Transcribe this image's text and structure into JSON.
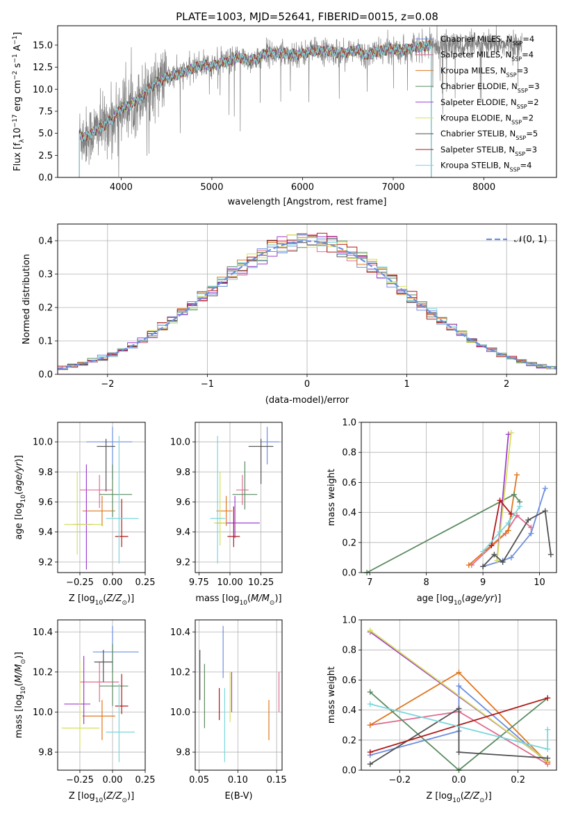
{
  "figure_title": "PLATE=1003, MJD=52641, FIBERID=0015, z=0.08",
  "models": [
    {
      "name": "Chabrier MILES",
      "nssp": "4",
      "color": "#6b8ee0"
    },
    {
      "name": "Salpeter MILES",
      "nssp": "4",
      "color": "#e06c8f"
    },
    {
      "name": "Kroupa MILES",
      "nssp": "3",
      "color": "#e0761f"
    },
    {
      "name": "Chabrier ELODIE",
      "nssp": "3",
      "color": "#5a8a5f"
    },
    {
      "name": "Salpeter ELODIE",
      "nssp": "2",
      "color": "#a03dd0"
    },
    {
      "name": "Kroupa ELODIE",
      "nssp": "2",
      "color": "#d6e05a"
    },
    {
      "name": "Chabrier STELIB",
      "nssp": "5",
      "color": "#505050"
    },
    {
      "name": "Salpeter STELIB",
      "nssp": "3",
      "color": "#b01818"
    },
    {
      "name": "Kroupa STELIB",
      "nssp": "4",
      "color": "#7ad6dc"
    }
  ],
  "nssp_prefix": "N",
  "nssp_sub": "SSP",
  "chart_data": [
    {
      "id": "spectrum",
      "type": "line",
      "xlabel": "wavelength [Angstrom, rest frame]",
      "ylabel": "Flux [f_λ10^-17 erg cm^-2 s^-1 A^-1]",
      "xlim": [
        3300,
        8800
      ],
      "ylim": [
        0,
        17.2
      ],
      "xticks": [
        4000,
        5000,
        6000,
        7000,
        8000
      ],
      "yticks": [
        0.0,
        2.5,
        5.0,
        7.5,
        10.0,
        12.5,
        15.0
      ],
      "data_color": "#808080",
      "model_color": "#7ad6dc",
      "model_x": [
        3540,
        3600,
        3700,
        3800,
        3900,
        4000,
        4100,
        4200,
        4300,
        4400,
        4500,
        4600,
        4700,
        4800,
        4900,
        5000,
        5100,
        5200,
        5300,
        5400,
        5500,
        5600,
        5700,
        5800,
        5900,
        6000,
        6100,
        6200,
        6300,
        6400,
        6500,
        6600,
        6700,
        6800,
        6900,
        7000,
        7100,
        7200,
        7300,
        7420
      ],
      "model_y": [
        4.9,
        4.5,
        5.2,
        5.8,
        6.6,
        7.8,
        8.2,
        8.9,
        10.0,
        10.8,
        11.3,
        11.6,
        12.0,
        12.4,
        12.8,
        12.6,
        13.0,
        13.2,
        13.6,
        13.3,
        13.4,
        14.2,
        14.0,
        14.1,
        14.0,
        14.0,
        14.3,
        14.4,
        14.3,
        14.1,
        14.2,
        14.4,
        13.8,
        14.2,
        14.4,
        14.6,
        14.4,
        14.7,
        14.8,
        15.0
      ],
      "data_range": [
        3540,
        8420
      ]
    },
    {
      "id": "residuals",
      "type": "step",
      "xlabel": "(data-model)/error",
      "ylabel": "Normed distribution",
      "xlim": [
        -2.5,
        2.5
      ],
      "ylim": [
        0,
        0.45
      ],
      "xticks": [
        -2,
        -1,
        0,
        1,
        2
      ],
      "yticks": [
        0.0,
        0.1,
        0.2,
        0.3,
        0.4
      ],
      "bin_width": 0.1,
      "gaussian_label": "𝒩(0, 1)",
      "gaussian_color": "#6b8ee0"
    },
    {
      "id": "age_vs_Z",
      "type": "errorbar",
      "xlabel": "Z [log10(Z/Z⊙)]",
      "ylabel": "age [log10(age/yr)]",
      "xlim": [
        -0.42,
        0.25
      ],
      "ylim": [
        9.13,
        10.13
      ],
      "xticks": [
        -0.25,
        0.0,
        0.25
      ],
      "xtick_labels": [
        "−0.25",
        "0.00",
        "0.25"
      ],
      "yticks": [
        9.2,
        9.4,
        9.6,
        9.8,
        10.0
      ],
      "points": [
        {
          "m": 0,
          "x": 0.0,
          "xe": [
            0.2,
            0.15
          ],
          "y": 10.0,
          "ye": [
            0.25,
            0.1
          ]
        },
        {
          "m": 1,
          "x": -0.1,
          "xe": [
            0.15,
            0.1
          ],
          "y": 9.68,
          "ye": [
            0.12,
            0.1
          ]
        },
        {
          "m": 2,
          "x": -0.08,
          "xe": [
            0.15,
            0.1
          ],
          "y": 9.54,
          "ye": [
            0.1,
            0.1
          ]
        },
        {
          "m": 3,
          "x": 0.0,
          "xe": [
            0.1,
            0.15
          ],
          "y": 9.65,
          "ye": [
            0.15,
            0.2
          ]
        },
        {
          "m": 4,
          "x": -0.2,
          "xe": [
            0.1,
            0.05
          ],
          "y": 9.45,
          "ye": [
            0.3,
            0.4
          ]
        },
        {
          "m": 5,
          "x": -0.27,
          "xe": [
            0.1,
            0.2
          ],
          "y": 9.45,
          "ye": [
            0.2,
            0.35
          ]
        },
        {
          "m": 6,
          "x": -0.05,
          "xe": [
            0.07,
            0.07
          ],
          "y": 9.97,
          "ye": [
            0.3,
            0.05
          ]
        },
        {
          "m": 7,
          "x": 0.07,
          "xe": [
            0.05,
            0.05
          ],
          "y": 9.37,
          "ye": [
            0.07,
            0.25
          ]
        },
        {
          "m": 8,
          "x": 0.05,
          "xe": [
            0.1,
            0.15
          ],
          "y": 9.49,
          "ye": [
            0.3,
            0.55
          ]
        }
      ]
    },
    {
      "id": "age_vs_mass",
      "type": "errorbar",
      "xlabel": "mass [log10(M/M⊙)]",
      "ylabel": "",
      "xlim": [
        9.72,
        10.42
      ],
      "ylim": [
        9.13,
        10.13
      ],
      "xticks": [
        9.75,
        10.0,
        10.25
      ],
      "xtick_labels": [
        "9.75",
        "10.00",
        "10.25"
      ],
      "yticks": [
        9.2,
        9.4,
        9.6,
        9.8,
        10.0
      ],
      "points": [
        {
          "m": 0,
          "x": 10.3,
          "xe": [
            0.05,
            0.1
          ],
          "y": 10.0,
          "ye": [
            0.15,
            0.1
          ]
        },
        {
          "m": 1,
          "x": 10.1,
          "xe": [
            0.05,
            0.05
          ],
          "y": 9.68,
          "ye": [
            0.1,
            0.1
          ]
        },
        {
          "m": 2,
          "x": 9.97,
          "xe": [
            0.08,
            0.05
          ],
          "y": 9.54,
          "ye": [
            0.1,
            0.1
          ]
        },
        {
          "m": 3,
          "x": 10.12,
          "xe": [
            0.1,
            0.1
          ],
          "y": 9.65,
          "ye": [
            0.1,
            0.22
          ]
        },
        {
          "m": 4,
          "x": 10.04,
          "xe": [
            0.15,
            0.2
          ],
          "y": 9.46,
          "ye": [
            0.1,
            0.18
          ]
        },
        {
          "m": 5,
          "x": 9.92,
          "xe": [
            0.05,
            0.05
          ],
          "y": 9.46,
          "ye": [
            0.15,
            0.34
          ]
        },
        {
          "m": 6,
          "x": 10.25,
          "xe": [
            0.1,
            0.1
          ],
          "y": 9.97,
          "ye": [
            0.25,
            0.05
          ]
        },
        {
          "m": 7,
          "x": 10.03,
          "xe": [
            0.05,
            0.05
          ],
          "y": 9.37,
          "ye": [
            0.07,
            0.2
          ]
        },
        {
          "m": 8,
          "x": 9.9,
          "xe": [
            0.06,
            0.06
          ],
          "y": 9.49,
          "ye": [
            0.3,
            0.55
          ]
        }
      ]
    },
    {
      "id": "weight_vs_age",
      "type": "line",
      "xlabel": "age [log10(age/yr)]",
      "ylabel": "mass weight",
      "xlim": [
        6.85,
        10.3
      ],
      "ylim": [
        0,
        1
      ],
      "xticks": [
        7,
        8,
        9,
        10
      ],
      "yticks": [
        0.0,
        0.2,
        0.4,
        0.6,
        0.8,
        1.0
      ],
      "series": [
        {
          "m": 0,
          "x": [
            9.0,
            9.35,
            9.5,
            9.85,
            10.1
          ],
          "y": [
            0.04,
            0.08,
            0.1,
            0.26,
            0.56
          ]
        },
        {
          "m": 1,
          "x": [
            8.8,
            9.4,
            9.6,
            9.85
          ],
          "y": [
            0.05,
            0.26,
            0.38,
            0.3
          ]
        },
        {
          "m": 2,
          "x": [
            8.75,
            9.45,
            9.6
          ],
          "y": [
            0.05,
            0.28,
            0.65
          ]
        },
        {
          "m": 3,
          "x": [
            6.95,
            9.55,
            9.65
          ],
          "y": [
            0.0,
            0.52,
            0.47
          ]
        },
        {
          "m": 4,
          "x": [
            9.25,
            9.45
          ],
          "y": [
            0.08,
            0.92
          ]
        },
        {
          "m": 5,
          "x": [
            9.25,
            9.5
          ],
          "y": [
            0.08,
            0.93
          ]
        },
        {
          "m": 6,
          "x": [
            9.0,
            9.2,
            9.35,
            9.8,
            10.1,
            10.2
          ],
          "y": [
            0.04,
            0.12,
            0.07,
            0.35,
            0.41,
            0.12
          ]
        },
        {
          "m": 7,
          "x": [
            9.15,
            9.3,
            9.5
          ],
          "y": [
            0.18,
            0.48,
            0.39
          ]
        },
        {
          "m": 8,
          "x": [
            9.0,
            9.3,
            9.45,
            9.65
          ],
          "y": [
            0.14,
            0.27,
            0.33,
            0.44
          ]
        }
      ]
    },
    {
      "id": "mass_vs_Z",
      "type": "errorbar",
      "xlabel": "Z [log10(Z/Z⊙)]",
      "ylabel": "mass [log10(M/M⊙)]",
      "xlim": [
        -0.42,
        0.25
      ],
      "ylim": [
        9.71,
        10.46
      ],
      "xticks": [
        -0.25,
        0.0,
        0.25
      ],
      "xtick_labels": [
        "−0.25",
        "0.00",
        "0.25"
      ],
      "yticks": [
        9.8,
        10.0,
        10.2,
        10.4
      ],
      "points": [
        {
          "m": 0,
          "x": 0.0,
          "xe": [
            0.15,
            0.2
          ],
          "y": 10.3,
          "ye": [
            0.1,
            0.13
          ]
        },
        {
          "m": 1,
          "x": -0.1,
          "xe": [
            0.15,
            0.15
          ],
          "y": 10.15,
          "ye": [
            0.1,
            0.1
          ]
        },
        {
          "m": 2,
          "x": -0.08,
          "xe": [
            0.15,
            0.1
          ],
          "y": 9.98,
          "ye": [
            0.12,
            0.08
          ]
        },
        {
          "m": 3,
          "x": 0.0,
          "xe": [
            0.1,
            0.12
          ],
          "y": 10.13,
          "ye": [
            0.1,
            0.21
          ]
        },
        {
          "m": 4,
          "x": -0.22,
          "xe": [
            0.15,
            0.05
          ],
          "y": 10.04,
          "ye": [
            0.1,
            0.24
          ]
        },
        {
          "m": 5,
          "x": -0.25,
          "xe": [
            0.14,
            0.15
          ],
          "y": 9.92,
          "ye": [
            0.1,
            0.33
          ]
        },
        {
          "m": 6,
          "x": -0.07,
          "xe": [
            0.07,
            0.07
          ],
          "y": 10.25,
          "ye": [
            0.1,
            0.06
          ]
        },
        {
          "m": 7,
          "x": 0.07,
          "xe": [
            0.05,
            0.05
          ],
          "y": 10.03,
          "ye": [
            0.04,
            0.16
          ]
        },
        {
          "m": 8,
          "x": 0.05,
          "xe": [
            0.1,
            0.12
          ],
          "y": 9.9,
          "ye": [
            0.15,
            0.24
          ]
        }
      ]
    },
    {
      "id": "mass_vs_ebv",
      "type": "errorbar",
      "xlabel": "E(B-V)",
      "ylabel": "",
      "xlim": [
        0.045,
        0.157
      ],
      "ylim": [
        9.71,
        10.46
      ],
      "xticks": [
        0.05,
        0.1,
        0.15
      ],
      "xtick_labels": [
        "0.05",
        "0.10",
        "0.15"
      ],
      "yticks": [
        9.8,
        10.0,
        10.2,
        10.4
      ],
      "points": [
        {
          "m": 0,
          "x": 0.081,
          "xe": [
            0,
            0
          ],
          "y": 10.3,
          "ye": [
            0.13,
            0.13
          ]
        },
        {
          "m": 1,
          "x": 0.153,
          "xe": [
            0,
            0
          ],
          "y": 10.1,
          "ye": [
            0.1,
            0.1
          ]
        },
        {
          "m": 2,
          "x": 0.14,
          "xe": [
            0,
            0
          ],
          "y": 9.93,
          "ye": [
            0.07,
            0.13
          ]
        },
        {
          "m": 3,
          "x": 0.057,
          "xe": [
            0,
            0
          ],
          "y": 10.08,
          "ye": [
            0.16,
            0.16
          ]
        },
        {
          "m": 4,
          "x": 0.092,
          "xe": [
            0,
            0
          ],
          "y": 10.1,
          "ye": [
            0.1,
            0.1
          ]
        },
        {
          "m": 5,
          "x": 0.09,
          "xe": [
            0,
            0
          ],
          "y": 10.05,
          "ye": [
            0.1,
            0.15
          ]
        },
        {
          "m": 6,
          "x": 0.051,
          "xe": [
            0,
            0
          ],
          "y": 10.18,
          "ye": [
            0.12,
            0.13
          ]
        },
        {
          "m": 7,
          "x": 0.076,
          "xe": [
            0,
            0
          ],
          "y": 10.04,
          "ye": [
            0.08,
            0.08
          ]
        },
        {
          "m": 8,
          "x": 0.083,
          "xe": [
            0,
            0
          ],
          "y": 9.95,
          "ye": [
            0.2,
            0.17
          ]
        }
      ]
    },
    {
      "id": "weight_vs_Z",
      "type": "line",
      "xlabel": "Z [log10(Z/Z⊙)]",
      "ylabel": "mass weight",
      "xlim": [
        -0.33,
        0.33
      ],
      "ylim": [
        0,
        1
      ],
      "xticks": [
        -0.2,
        0.0,
        0.2
      ],
      "xtick_labels": [
        "−0.2",
        "0.0",
        "0.2"
      ],
      "yticks": [
        0.0,
        0.2,
        0.4,
        0.6,
        0.8,
        1.0
      ],
      "series": [
        {
          "m": 0,
          "x": [
            -0.3,
            0.0,
            0.0,
            0.3
          ],
          "y": [
            0.1,
            0.26,
            0.56,
            0.05
          ]
        },
        {
          "m": 1,
          "x": [
            -0.3,
            0.0,
            0.3
          ],
          "y": [
            0.3,
            0.39,
            0.04
          ]
        },
        {
          "m": 2,
          "x": [
            -0.3,
            0.0,
            0.3
          ],
          "y": [
            0.3,
            0.65,
            0.05
          ]
        },
        {
          "m": 3,
          "x": [
            -0.3,
            0.0,
            0.3
          ],
          "y": [
            0.52,
            0.0,
            0.48
          ]
        },
        {
          "m": 4,
          "x": [
            -0.3,
            0.3
          ],
          "y": [
            0.92,
            0.06
          ]
        },
        {
          "m": 5,
          "x": [
            -0.3,
            0.3
          ],
          "y": [
            0.93,
            0.06
          ]
        },
        {
          "m": 6,
          "x": [
            -0.3,
            0.0,
            0.0,
            0.3
          ],
          "y": [
            0.04,
            0.41,
            0.12,
            0.08
          ]
        },
        {
          "m": 7,
          "x": [
            -0.3,
            0.3
          ],
          "y": [
            0.12,
            0.48
          ]
        },
        {
          "m": 8,
          "x": [
            -0.3,
            0.3,
            0.3
          ],
          "y": [
            0.44,
            0.14,
            0.27
          ]
        }
      ]
    }
  ]
}
